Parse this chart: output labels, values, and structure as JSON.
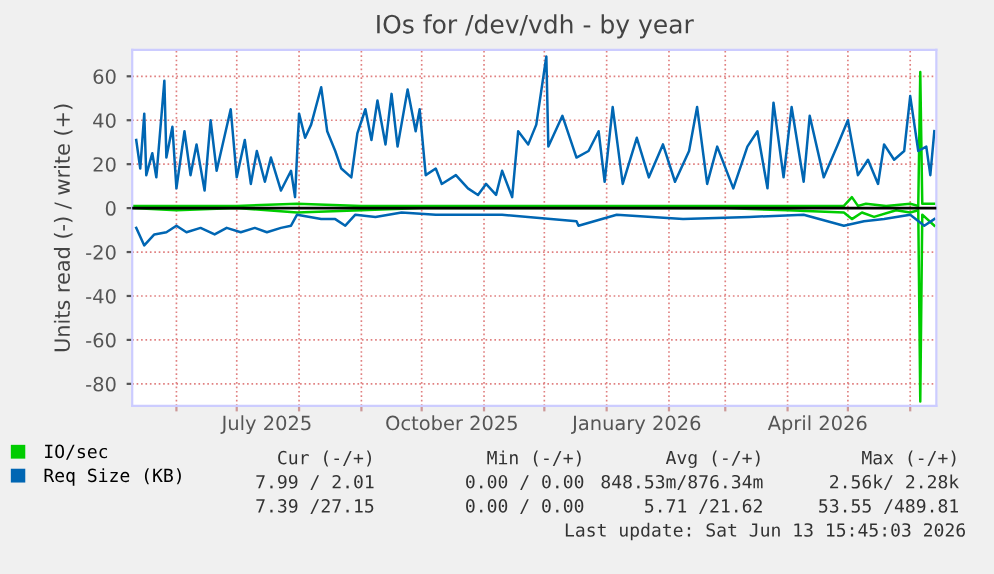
{
  "chart_data": {
    "type": "line",
    "title": "IOs for /dev/vdh - by year",
    "ylabel": "Units read (-) / write (+)",
    "xlim": [
      "2025-05-10",
      "2026-06-14"
    ],
    "ylim": [
      -90,
      72
    ],
    "yticks": [
      -80,
      -60,
      -40,
      -20,
      0,
      20,
      40,
      60
    ],
    "xticks": [
      {
        "value": "2025-06-01",
        "label": null
      },
      {
        "value": "2025-07-01",
        "label": null
      },
      {
        "value": "2025-08-01",
        "label": null
      },
      {
        "value": "2025-09-01",
        "label": null
      },
      {
        "value": "2025-10-01",
        "label": null
      },
      {
        "value": "2025-11-01",
        "label": null
      },
      {
        "value": "2025-12-01",
        "label": null
      },
      {
        "value": "2026-01-01",
        "label": null
      },
      {
        "value": "2026-02-01",
        "label": null
      },
      {
        "value": "2026-03-01",
        "label": null
      },
      {
        "value": "2026-04-01",
        "label": null
      },
      {
        "value": "2026-05-01",
        "label": null
      },
      {
        "value": "2026-06-01",
        "label": null
      },
      {
        "value": "2025-07-16",
        "label": "July 2025"
      },
      {
        "value": "2025-10-16",
        "label": "October 2025"
      },
      {
        "value": "2026-01-16",
        "label": "January 2026"
      },
      {
        "value": "2026-04-16",
        "label": "April 2026"
      }
    ],
    "grid": true,
    "legend": "bottom left",
    "ref_lines": [
      {
        "axis": "y",
        "value": 0,
        "color": "#000000"
      }
    ],
    "series": [
      {
        "name": "IO/sec",
        "color": "#00cc00",
        "x": [
          "2025-05-10",
          "2025-06-01",
          "2025-07-01",
          "2025-07-31",
          "2025-09-01",
          "2025-10-01",
          "2025-11-01",
          "2025-12-01",
          "2026-01-01",
          "2026-02-01",
          "2026-03-01",
          "2026-04-01",
          "2026-04-29",
          "2026-05-03",
          "2026-05-06",
          "2026-05-10",
          "2026-05-20",
          "2026-06-01",
          "2026-06-05",
          "2026-06-06",
          "2026-06-07",
          "2026-06-13"
        ],
        "values": [
          1,
          1,
          1,
          2,
          1,
          1,
          1,
          1,
          1,
          1,
          1,
          1,
          1,
          5,
          1,
          2,
          1,
          2,
          1,
          62,
          2,
          2
        ]
      },
      {
        "color": "#00cc00",
        "x": [
          "2025-05-10",
          "2025-06-01",
          "2025-07-01",
          "2025-07-31",
          "2025-09-01",
          "2025-10-01",
          "2025-11-01",
          "2025-12-01",
          "2026-01-01",
          "2026-02-01",
          "2026-03-01",
          "2026-04-01",
          "2026-04-29",
          "2026-05-03",
          "2026-05-08",
          "2026-05-14",
          "2026-05-25",
          "2026-06-01",
          "2026-06-05",
          "2026-06-06",
          "2026-06-07",
          "2026-06-13"
        ],
        "values": [
          0,
          -1,
          0,
          -2,
          -1,
          0,
          0,
          0,
          0,
          0,
          0,
          -1,
          -2,
          -5,
          -2,
          -4,
          -1,
          -2,
          -1,
          -88,
          -3,
          -8
        ]
      },
      {
        "name": "Req Size (KB)",
        "color": "#0066b3",
        "x": [
          "2025-05-12",
          "2025-05-14",
          "2025-05-16",
          "2025-05-17",
          "2025-05-20",
          "2025-05-22",
          "2025-05-26",
          "2025-05-27",
          "2025-05-30",
          "2025-06-01",
          "2025-06-05",
          "2025-06-08",
          "2025-06-11",
          "2025-06-15",
          "2025-06-18",
          "2025-06-21",
          "2025-06-28",
          "2025-07-01",
          "2025-07-05",
          "2025-07-08",
          "2025-07-11",
          "2025-07-15",
          "2025-07-18",
          "2025-07-23",
          "2025-07-28",
          "2025-07-30",
          "2025-08-01",
          "2025-08-04",
          "2025-08-07",
          "2025-08-12",
          "2025-08-15",
          "2025-08-19",
          "2025-08-22",
          "2025-08-27",
          "2025-08-30",
          "2025-09-03",
          "2025-09-06",
          "2025-09-09",
          "2025-09-13",
          "2025-09-16",
          "2025-09-19",
          "2025-09-24",
          "2025-09-28",
          "2025-09-30",
          "2025-10-03",
          "2025-10-08",
          "2025-10-11",
          "2025-10-18",
          "2025-10-24",
          "2025-10-29",
          "2025-11-02",
          "2025-11-07",
          "2025-11-10",
          "2025-11-15",
          "2025-11-18",
          "2025-11-23",
          "2025-11-27",
          "2025-12-02",
          "2025-12-03",
          "2025-12-10",
          "2025-12-17",
          "2025-12-23",
          "2025-12-28",
          "2025-12-31",
          "2026-01-04",
          "2026-01-09",
          "2026-01-16",
          "2026-01-22",
          "2026-01-29",
          "2026-02-04",
          "2026-02-11",
          "2026-02-15",
          "2026-02-20",
          "2026-02-25",
          "2026-03-05",
          "2026-03-12",
          "2026-03-17",
          "2026-03-22",
          "2026-03-25",
          "2026-03-30",
          "2026-04-03",
          "2026-04-09",
          "2026-04-12",
          "2026-04-19",
          "2026-04-26",
          "2026-05-01",
          "2026-05-06",
          "2026-05-11",
          "2026-05-16",
          "2026-05-19",
          "2026-05-24",
          "2026-05-29",
          "2026-06-01",
          "2026-06-05",
          "2026-06-09",
          "2026-06-11",
          "2026-06-13"
        ],
        "values": [
          31,
          18,
          43,
          15,
          25,
          14,
          58,
          23,
          37,
          9,
          35,
          15,
          29,
          8,
          40,
          17,
          45,
          14,
          31,
          11,
          26,
          12,
          23,
          8,
          17,
          5,
          43,
          32,
          38,
          55,
          35,
          26,
          18,
          14,
          34,
          45,
          31,
          49,
          29,
          52,
          28,
          54,
          35,
          45,
          15,
          18,
          11,
          15,
          9,
          6,
          11,
          6,
          17,
          5,
          35,
          29,
          38,
          69,
          28,
          42,
          23,
          26,
          35,
          12,
          46,
          11,
          32,
          14,
          29,
          12,
          26,
          46,
          11,
          28,
          9,
          28,
          35,
          9,
          48,
          14,
          46,
          12,
          42,
          14,
          29,
          40,
          15,
          22,
          11,
          29,
          22,
          26,
          51,
          26,
          28,
          15,
          35
        ]
      },
      {
        "color": "#0066b3",
        "x": [
          "2025-05-12",
          "2025-05-16",
          "2025-05-21",
          "2025-05-27",
          "2025-06-01",
          "2025-06-06",
          "2025-06-13",
          "2025-06-20",
          "2025-06-26",
          "2025-07-03",
          "2025-07-10",
          "2025-07-16",
          "2025-07-23",
          "2025-07-28",
          "2025-07-31",
          "2025-08-12",
          "2025-08-19",
          "2025-08-24",
          "2025-08-29",
          "2025-09-08",
          "2025-09-21",
          "2025-10-08",
          "2025-10-24",
          "2025-11-10",
          "2025-12-17",
          "2025-12-18",
          "2026-01-06",
          "2026-02-08",
          "2026-03-13",
          "2026-04-09",
          "2026-04-29",
          "2026-05-09",
          "2026-05-19",
          "2026-06-01",
          "2026-06-08",
          "2026-06-13"
        ],
        "values": [
          -9,
          -17,
          -12,
          -11,
          -8,
          -11,
          -9,
          -12,
          -9,
          -11,
          -9,
          -11,
          -9,
          -8,
          -3,
          -5,
          -5,
          -8,
          -3,
          -4,
          -2,
          -3,
          -3,
          -3,
          -6,
          -8,
          -3,
          -5,
          -4,
          -3,
          -8,
          -6,
          -5,
          -3,
          -8,
          -5
        ]
      }
    ],
    "annotations": [
      "Cur (-/+)",
      "Min (-/+)",
      "Avg (-/+)",
      "Max (-/+)",
      "7.99 / 2.01",
      "0.00 / 0.00",
      "848.53m/876.34m",
      "2.56k/ 2.28k",
      "7.39 /27.15",
      "0.00 / 0.00",
      "5.71 /21.62",
      "53.55 /489.81",
      "Last update: Sat Jun 13 15:45:03 2026"
    ]
  }
}
